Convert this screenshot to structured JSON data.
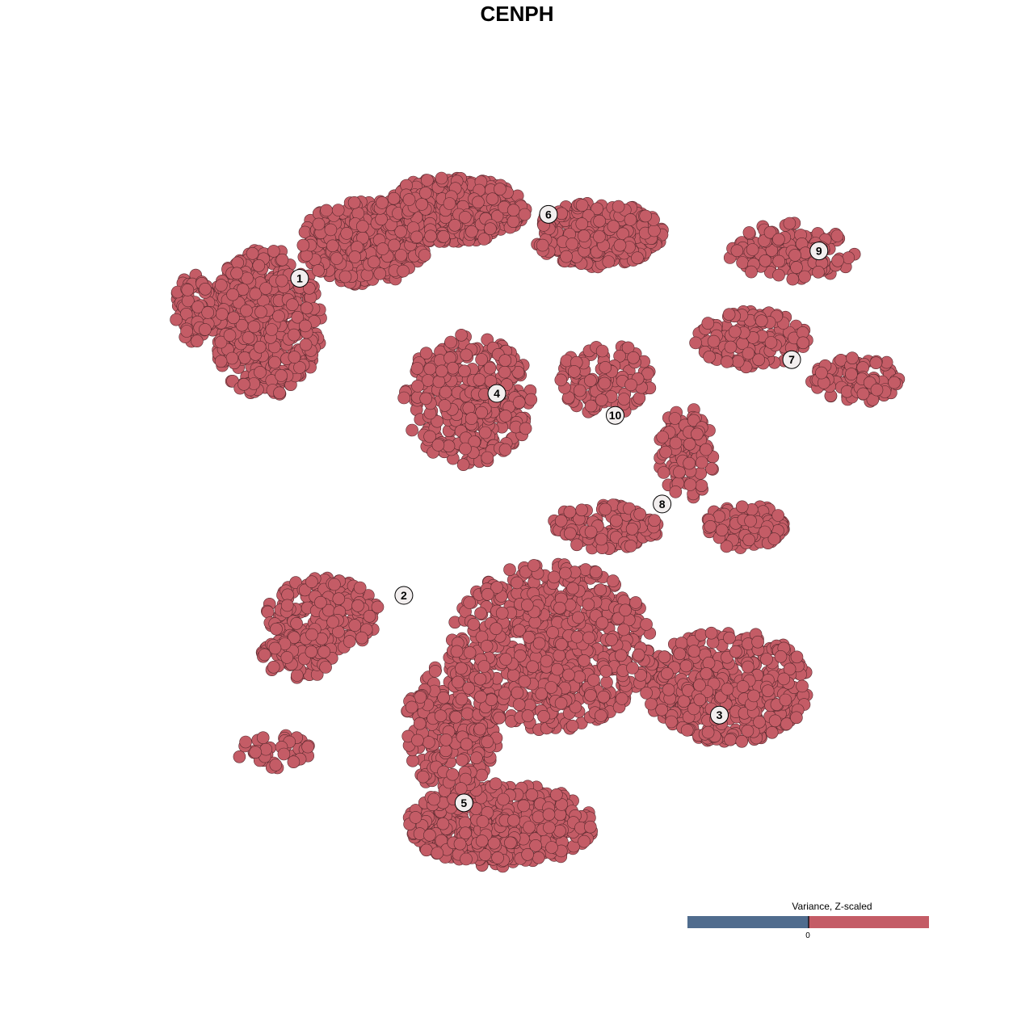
{
  "chart_data": {
    "type": "scatter",
    "title": "CENPH",
    "xlabel": "",
    "ylabel": "",
    "xlim": [
      -40,
      40
    ],
    "ylim": [
      -40,
      40
    ],
    "grid": false,
    "point_color": "#C45C66",
    "point_stroke": "#5a2a2f",
    "note_points": "cells of the embedding, all colored above 0 on the Z-scaled variance scale",
    "clusters": [
      {
        "label": "1",
        "center": [
          -25.3,
          25.9
        ],
        "blobs": [
          [
            -28.9,
            21.0,
            5.2,
            7.1,
            500
          ],
          [
            -18.5,
            29.8,
            6.0,
            4.0,
            400
          ],
          [
            -36.6,
            22.7,
            1.7,
            3.5,
            80
          ]
        ]
      },
      {
        "label": "2",
        "center": [
          -14.2,
          -8.8
        ],
        "blobs": [
          [
            -22.8,
            -10.9,
            5.2,
            3.5,
            200
          ],
          [
            -25.4,
            -15.3,
            3.4,
            2.2,
            80
          ],
          [
            -28.0,
            -25.9,
            3.4,
            1.8,
            40
          ]
        ]
      },
      {
        "label": "3",
        "center": [
          19.4,
          -21.9
        ],
        "blobs": [
          [
            20.3,
            -18.8,
            7.8,
            5.3,
            450
          ]
        ]
      },
      {
        "label": "4",
        "center": [
          -4.3,
          13.3
        ],
        "blobs": [
          [
            -7.3,
            12.6,
            6.0,
            6.2,
            350
          ]
        ]
      },
      {
        "label": "5",
        "center": [
          -7.8,
          -31.5
        ],
        "blobs": [
          [
            -3.9,
            -33.9,
            8.6,
            4.0,
            500
          ],
          [
            -9.1,
            -23.3,
            4.3,
            6.2,
            250
          ],
          [
            1.3,
            -14.4,
            9.5,
            8.0,
            700
          ]
        ]
      },
      {
        "label": "6",
        "center": [
          1.2,
          32.9
        ],
        "blobs": [
          [
            -9.1,
            33.4,
            6.9,
            3.1,
            500
          ],
          [
            6.5,
            30.7,
            6.0,
            3.1,
            300
          ]
        ]
      },
      {
        "label": "7",
        "center": [
          27.1,
          17.0
        ],
        "blobs": [
          [
            22.8,
            19.2,
            5.2,
            2.7,
            150
          ],
          [
            34.1,
            14.8,
            4.3,
            2.2,
            100
          ]
        ]
      },
      {
        "label": "8",
        "center": [
          13.3,
          1.2
        ],
        "blobs": [
          [
            15.9,
            6.8,
            2.6,
            4.4,
            100
          ],
          [
            22.0,
            -1.2,
            3.9,
            2.2,
            120
          ],
          [
            7.3,
            -1.2,
            5.2,
            2.2,
            120
          ]
        ]
      },
      {
        "label": "9",
        "center": [
          30.0,
          28.9
        ],
        "blobs": [
          [
            27.2,
            28.9,
            6.0,
            2.7,
            150
          ]
        ]
      },
      {
        "label": "10",
        "center": [
          8.3,
          10.9
        ],
        "blobs": [
          [
            7.3,
            14.8,
            4.3,
            3.5,
            120
          ]
        ]
      }
    ],
    "legend": {
      "title": "Variance, Z-scaled",
      "tick_label": "0",
      "low_color": "#506C8E",
      "high_color": "#C45C66",
      "placement": "bottom-right"
    }
  }
}
